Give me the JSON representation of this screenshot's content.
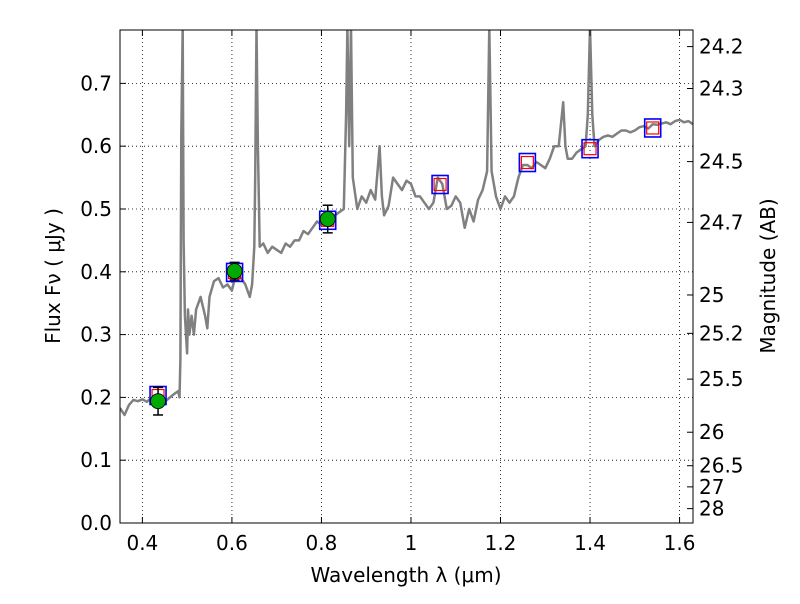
{
  "chart_data": {
    "type": "scatter",
    "xlabel": "Wavelength  λ (μm)",
    "ylabel": "Flux  Fν  ( μJy )",
    "y2label": "Magnitude (AB)",
    "xlim": [
      0.35,
      1.63
    ],
    "ylim": [
      0.0,
      0.785
    ],
    "xticks": [
      {
        "value": 0.4,
        "label": "0.4"
      },
      {
        "value": 0.6,
        "label": "0.6"
      },
      {
        "value": 0.8,
        "label": "0.8"
      },
      {
        "value": 1.0,
        "label": "1"
      },
      {
        "value": 1.2,
        "label": "1.2"
      },
      {
        "value": 1.4,
        "label": "1.4"
      },
      {
        "value": 1.6,
        "label": "1.6"
      }
    ],
    "yticks": [
      {
        "value": 0.0,
        "label": "0.0"
      },
      {
        "value": 0.1,
        "label": "0.1"
      },
      {
        "value": 0.2,
        "label": "0.2"
      },
      {
        "value": 0.3,
        "label": "0.3"
      },
      {
        "value": 0.4,
        "label": "0.4"
      },
      {
        "value": 0.5,
        "label": "0.5"
      },
      {
        "value": 0.6,
        "label": "0.6"
      },
      {
        "value": 0.7,
        "label": "0.7"
      }
    ],
    "mag_ticks": [
      {
        "mag": 24.2,
        "label": "24.2"
      },
      {
        "mag": 24.3,
        "label": "24.3"
      },
      {
        "mag": 24.5,
        "label": "24.5"
      },
      {
        "mag": 24.7,
        "label": "24.7"
      },
      {
        "mag": 25.0,
        "label": "25"
      },
      {
        "mag": 25.2,
        "label": "25.2"
      },
      {
        "mag": 25.5,
        "label": "25.5"
      },
      {
        "mag": 26.0,
        "label": "26"
      },
      {
        "mag": 26.5,
        "label": "26.5"
      },
      {
        "mag": 27.0,
        "label": "27"
      },
      {
        "mag": 28.0,
        "label": "28"
      }
    ],
    "grid": true,
    "colors": {
      "model": "#808080",
      "obs_fill": "#00aa00",
      "model_box": "#0000ff",
      "model_box_inner": "#ff0000",
      "errorbar": "#000000"
    },
    "observed_points": [
      {
        "x": 0.435,
        "y": 0.194,
        "err": 0.022
      },
      {
        "x": 0.606,
        "y": 0.401,
        "err": 0.014
      },
      {
        "x": 0.814,
        "y": 0.484,
        "err": 0.022
      }
    ],
    "model_points": [
      {
        "x": 0.435,
        "y": 0.203
      },
      {
        "x": 0.606,
        "y": 0.399
      },
      {
        "x": 0.814,
        "y": 0.482
      },
      {
        "x": 1.065,
        "y": 0.539
      },
      {
        "x": 1.26,
        "y": 0.574
      },
      {
        "x": 1.4,
        "y": 0.596
      },
      {
        "x": 1.54,
        "y": 0.629
      }
    ],
    "model_spectrum": [
      [
        0.35,
        0.183
      ],
      [
        0.36,
        0.172
      ],
      [
        0.37,
        0.188
      ],
      [
        0.38,
        0.196
      ],
      [
        0.39,
        0.194
      ],
      [
        0.4,
        0.197
      ],
      [
        0.41,
        0.193
      ],
      [
        0.42,
        0.199
      ],
      [
        0.43,
        0.196
      ],
      [
        0.44,
        0.2
      ],
      [
        0.45,
        0.193
      ],
      [
        0.46,
        0.199
      ],
      [
        0.47,
        0.205
      ],
      [
        0.48,
        0.21
      ],
      [
        0.483,
        0.2
      ],
      [
        0.485,
        0.26
      ],
      [
        0.487,
        0.62
      ],
      [
        0.49,
        0.79
      ],
      [
        0.492,
        0.45
      ],
      [
        0.495,
        0.33
      ],
      [
        0.5,
        0.27
      ],
      [
        0.502,
        0.34
      ],
      [
        0.505,
        0.3
      ],
      [
        0.51,
        0.33
      ],
      [
        0.515,
        0.3
      ],
      [
        0.52,
        0.34
      ],
      [
        0.53,
        0.36
      ],
      [
        0.54,
        0.33
      ],
      [
        0.545,
        0.31
      ],
      [
        0.55,
        0.36
      ],
      [
        0.56,
        0.385
      ],
      [
        0.57,
        0.39
      ],
      [
        0.58,
        0.375
      ],
      [
        0.59,
        0.38
      ],
      [
        0.6,
        0.37
      ],
      [
        0.61,
        0.4
      ],
      [
        0.62,
        0.39
      ],
      [
        0.63,
        0.38
      ],
      [
        0.64,
        0.36
      ],
      [
        0.645,
        0.38
      ],
      [
        0.65,
        0.44
      ],
      [
        0.652,
        0.55
      ],
      [
        0.655,
        0.79
      ],
      [
        0.658,
        0.6
      ],
      [
        0.662,
        0.44
      ],
      [
        0.67,
        0.445
      ],
      [
        0.68,
        0.43
      ],
      [
        0.69,
        0.44
      ],
      [
        0.7,
        0.435
      ],
      [
        0.71,
        0.43
      ],
      [
        0.72,
        0.445
      ],
      [
        0.73,
        0.44
      ],
      [
        0.74,
        0.45
      ],
      [
        0.75,
        0.45
      ],
      [
        0.76,
        0.465
      ],
      [
        0.77,
        0.46
      ],
      [
        0.78,
        0.47
      ],
      [
        0.79,
        0.48
      ],
      [
        0.8,
        0.475
      ],
      [
        0.81,
        0.485
      ],
      [
        0.82,
        0.48
      ],
      [
        0.83,
        0.49
      ],
      [
        0.84,
        0.495
      ],
      [
        0.85,
        0.5
      ],
      [
        0.855,
        0.65
      ],
      [
        0.858,
        0.79
      ],
      [
        0.862,
        0.6
      ],
      [
        0.866,
        0.79
      ],
      [
        0.87,
        0.55
      ],
      [
        0.88,
        0.5
      ],
      [
        0.89,
        0.52
      ],
      [
        0.9,
        0.51
      ],
      [
        0.91,
        0.53
      ],
      [
        0.92,
        0.515
      ],
      [
        0.93,
        0.6
      ],
      [
        0.935,
        0.52
      ],
      [
        0.94,
        0.49
      ],
      [
        0.95,
        0.505
      ],
      [
        0.96,
        0.55
      ],
      [
        0.97,
        0.54
      ],
      [
        0.98,
        0.53
      ],
      [
        0.99,
        0.545
      ],
      [
        1.0,
        0.54
      ],
      [
        1.01,
        0.52
      ],
      [
        1.02,
        0.52
      ],
      [
        1.03,
        0.51
      ],
      [
        1.04,
        0.5
      ],
      [
        1.05,
        0.51
      ],
      [
        1.06,
        0.55
      ],
      [
        1.07,
        0.54
      ],
      [
        1.08,
        0.5
      ],
      [
        1.09,
        0.505
      ],
      [
        1.1,
        0.52
      ],
      [
        1.11,
        0.51
      ],
      [
        1.12,
        0.47
      ],
      [
        1.13,
        0.5
      ],
      [
        1.14,
        0.48
      ],
      [
        1.15,
        0.515
      ],
      [
        1.16,
        0.53
      ],
      [
        1.17,
        0.56
      ],
      [
        1.175,
        0.79
      ],
      [
        1.18,
        0.56
      ],
      [
        1.19,
        0.52
      ],
      [
        1.2,
        0.5
      ],
      [
        1.21,
        0.52
      ],
      [
        1.22,
        0.51
      ],
      [
        1.23,
        0.52
      ],
      [
        1.24,
        0.55
      ],
      [
        1.25,
        0.57
      ],
      [
        1.26,
        0.57
      ],
      [
        1.27,
        0.565
      ],
      [
        1.28,
        0.575
      ],
      [
        1.29,
        0.57
      ],
      [
        1.3,
        0.565
      ],
      [
        1.31,
        0.58
      ],
      [
        1.32,
        0.6
      ],
      [
        1.33,
        0.6
      ],
      [
        1.34,
        0.67
      ],
      [
        1.345,
        0.6
      ],
      [
        1.35,
        0.58
      ],
      [
        1.36,
        0.58
      ],
      [
        1.37,
        0.59
      ],
      [
        1.38,
        0.595
      ],
      [
        1.39,
        0.6
      ],
      [
        1.395,
        0.65
      ],
      [
        1.4,
        0.79
      ],
      [
        1.405,
        0.65
      ],
      [
        1.41,
        0.6
      ],
      [
        1.42,
        0.61
      ],
      [
        1.43,
        0.615
      ],
      [
        1.44,
        0.617
      ],
      [
        1.45,
        0.615
      ],
      [
        1.46,
        0.62
      ],
      [
        1.47,
        0.625
      ],
      [
        1.48,
        0.625
      ],
      [
        1.49,
        0.622
      ],
      [
        1.5,
        0.625
      ],
      [
        1.51,
        0.63
      ],
      [
        1.52,
        0.632
      ],
      [
        1.53,
        0.628
      ],
      [
        1.54,
        0.635
      ],
      [
        1.55,
        0.634
      ],
      [
        1.56,
        0.636
      ],
      [
        1.57,
        0.638
      ],
      [
        1.58,
        0.635
      ],
      [
        1.59,
        0.64
      ],
      [
        1.6,
        0.642
      ],
      [
        1.61,
        0.638
      ],
      [
        1.62,
        0.64
      ],
      [
        1.63,
        0.635
      ]
    ]
  }
}
